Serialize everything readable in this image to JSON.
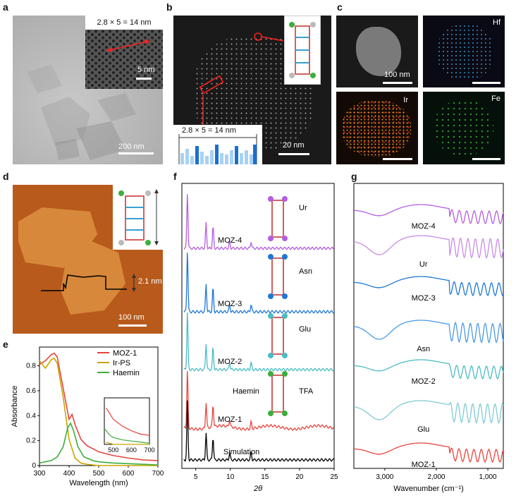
{
  "panels": {
    "a": {
      "label": "a",
      "inset_top": "2.8 × 5 = 14 nm",
      "inset_scale": "5 nm",
      "scale": "200 nm"
    },
    "b": {
      "label": "b",
      "profile_label": "2.8 × 5 = 14 nm",
      "scale": "20 nm"
    },
    "c": {
      "label": "c",
      "scale": "100 nm",
      "elements": [
        "Hf",
        "Ir",
        "Fe"
      ]
    },
    "d": {
      "label": "d",
      "height": "2.1 nm",
      "scale": "100 nm"
    },
    "e": {
      "label": "e"
    },
    "f": {
      "label": "f",
      "annotations": [
        "Ur",
        "Asn",
        "Glu",
        "Haemin",
        "TFA"
      ]
    },
    "g": {
      "label": "g"
    }
  },
  "colors": {
    "moz1": "#e8453c",
    "moz2": "#4bbcc4",
    "moz3": "#1f77d4",
    "moz4": "#b45ee0",
    "irps": "#c9a400",
    "haemin": "#3cae3c",
    "ur": "#c98be8",
    "asn": "#4a9ae6",
    "glu": "#7fcbd3",
    "sim": "#000000"
  },
  "chart_data": [
    {
      "panel": "e",
      "type": "line",
      "xlabel": "Wavelength (nm)",
      "ylabel": "Absorbance",
      "xlim": [
        300,
        700
      ],
      "ylim": [
        0,
        0.95
      ],
      "xticks": [
        300,
        400,
        500,
        600,
        700
      ],
      "yticks": [
        0,
        0.2,
        0.4,
        0.6,
        0.8
      ],
      "legend_position": "top-right",
      "series": [
        {
          "name": "MOZ-1",
          "color": "#e8453c",
          "x": [
            300,
            320,
            340,
            350,
            360,
            380,
            400,
            410,
            420,
            440,
            460,
            500,
            550,
            600,
            650,
            700
          ],
          "y": [
            0.81,
            0.84,
            0.89,
            0.9,
            0.87,
            0.62,
            0.37,
            0.41,
            0.33,
            0.21,
            0.16,
            0.11,
            0.08,
            0.06,
            0.045,
            0.04
          ]
        },
        {
          "name": "Ir-PS",
          "color": "#c9a400",
          "x": [
            300,
            320,
            340,
            350,
            360,
            380,
            400,
            420,
            440,
            460,
            500,
            550,
            600,
            700
          ],
          "y": [
            0.84,
            0.78,
            0.85,
            0.86,
            0.82,
            0.55,
            0.21,
            0.06,
            0.02,
            0.01,
            0.0,
            0.0,
            0.0,
            0.0
          ]
        },
        {
          "name": "Haemin",
          "color": "#3cae3c",
          "x": [
            300,
            340,
            360,
            380,
            395,
            405,
            415,
            430,
            450,
            480,
            500,
            550,
            600,
            650,
            700
          ],
          "y": [
            0.02,
            0.04,
            0.07,
            0.15,
            0.3,
            0.34,
            0.28,
            0.15,
            0.07,
            0.04,
            0.03,
            0.02,
            0.015,
            0.01,
            0.005
          ]
        }
      ],
      "inset": {
        "xticks": [
          500,
          600,
          700
        ]
      }
    },
    {
      "panel": "f",
      "type": "line",
      "xlabel": "2θ",
      "xlim": [
        3,
        25
      ],
      "xticks": [
        5,
        10,
        15,
        20,
        25
      ],
      "series": [
        {
          "name": "MOZ-4",
          "color": "#b45ee0"
        },
        {
          "name": "MOZ-3",
          "color": "#1f77d4"
        },
        {
          "name": "MOZ-2",
          "color": "#4bbcc4"
        },
        {
          "name": "MOZ-1",
          "color": "#e8453c"
        },
        {
          "name": "Simulation",
          "color": "#000000"
        }
      ],
      "peaks": [
        3.8,
        6.5,
        7.5,
        9.9,
        13.0
      ]
    },
    {
      "panel": "g",
      "type": "line",
      "xlabel": "Wavenumber (cm⁻¹)",
      "xlim": [
        3600,
        700
      ],
      "xticks": [
        3000,
        2000,
        1000
      ],
      "xtick_labels": [
        "3,000",
        "2,000",
        "1,000"
      ],
      "series": [
        {
          "name": "MOZ-4",
          "color": "#b45ee0"
        },
        {
          "name": "Ur",
          "color": "#c98be8"
        },
        {
          "name": "MOZ-3",
          "color": "#1f77d4"
        },
        {
          "name": "Asn",
          "color": "#4a9ae6"
        },
        {
          "name": "MOZ-2",
          "color": "#4bbcc4"
        },
        {
          "name": "Glu",
          "color": "#7fcbd3"
        },
        {
          "name": "MOZ-1",
          "color": "#e8453c"
        }
      ]
    }
  ]
}
